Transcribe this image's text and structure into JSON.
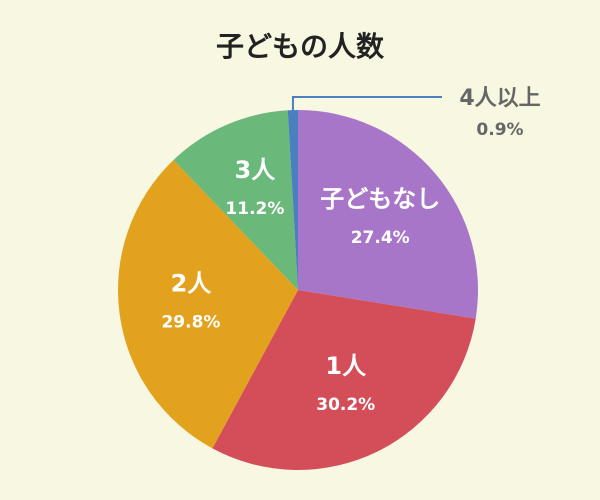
{
  "chart_data": {
    "type": "pie",
    "title": "子どもの人数",
    "categories": [
      "子どもなし",
      "1人",
      "2人",
      "3人",
      "4人以上"
    ],
    "values": [
      27.4,
      30.2,
      29.8,
      11.2,
      0.9
    ],
    "value_labels": [
      "27.4%",
      "30.2%",
      "29.8%",
      "11.2%",
      "0.9%"
    ],
    "colors": [
      "#a876c8",
      "#d44e5a",
      "#e2a21e",
      "#6ab87a",
      "#4a7fc0"
    ]
  }
}
